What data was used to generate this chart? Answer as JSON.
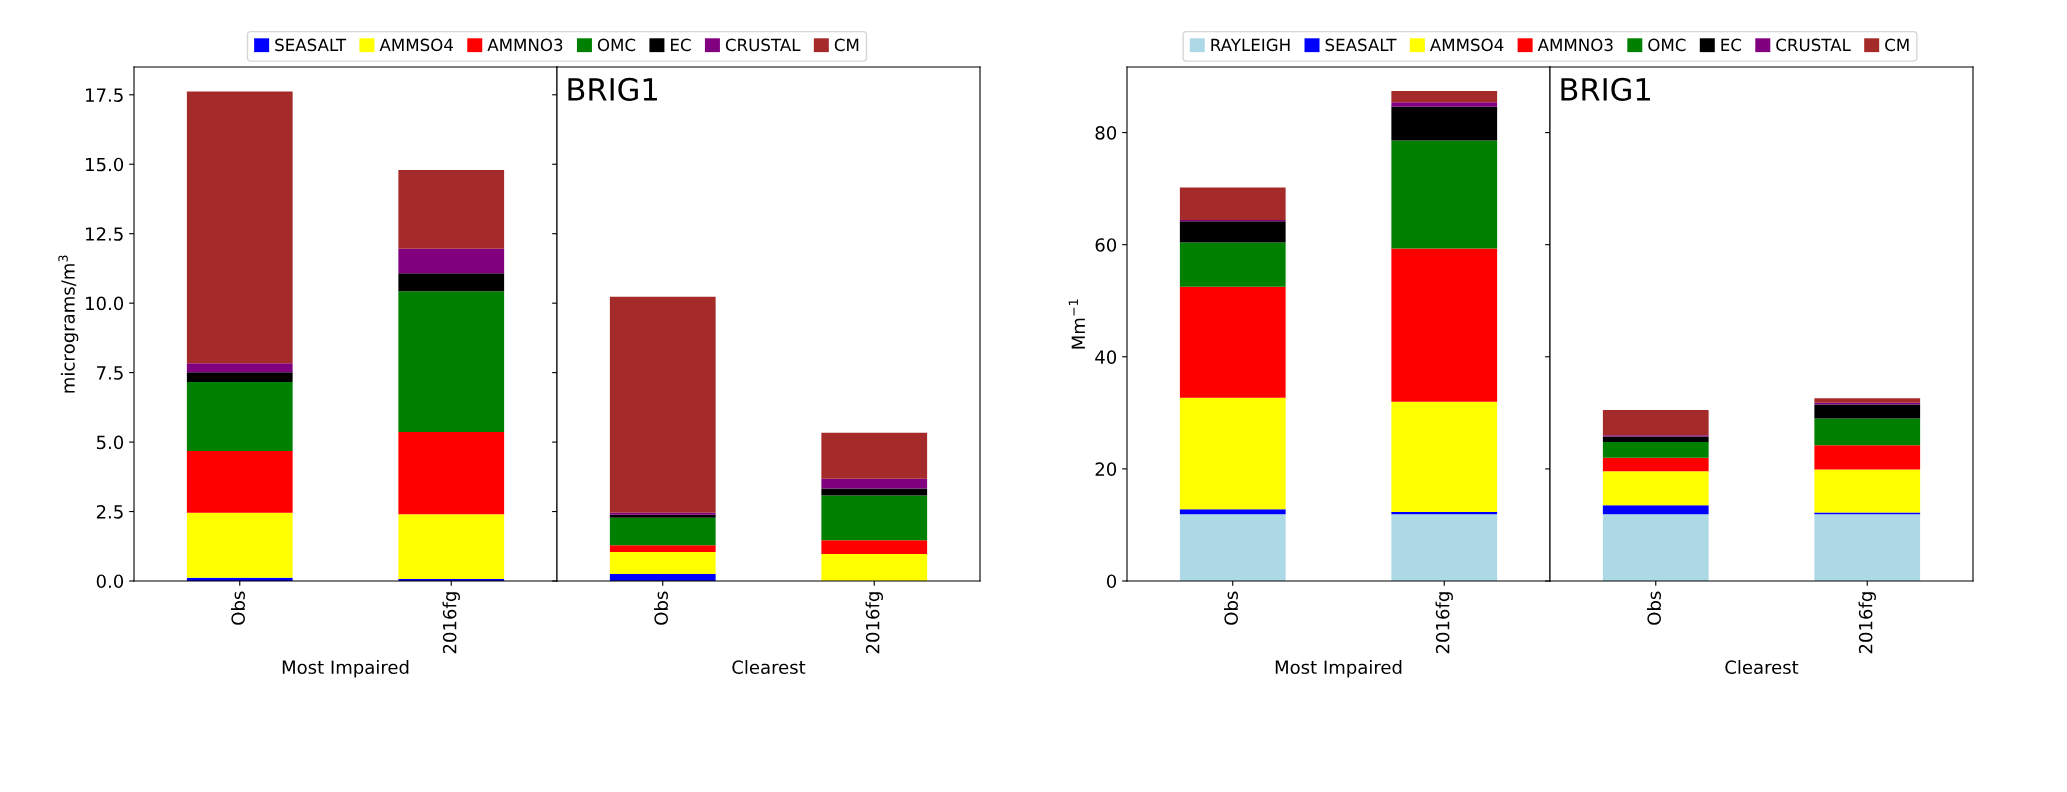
{
  "chart_data": [
    {
      "type": "bar",
      "stacked": true,
      "categories": [
        "Obs",
        "2016fg"
      ],
      "xlabel": "Most Impaired",
      "ylabel": "micrograms/m$^{3}$",
      "ylim": [
        0,
        18.5
      ],
      "yticks": [
        {
          "value": 0,
          "label": "0.0"
        },
        2.5,
        {
          "value": 5,
          "label": "5.0"
        },
        7.5,
        {
          "value": 10,
          "label": "10.0"
        },
        12.5,
        {
          "value": 15,
          "label": "15.0"
        },
        17.5
      ],
      "legend": "top",
      "grid": false,
      "series": [
        {
          "name": "SEASALT",
          "color": "#0000ff",
          "values": [
            0.12,
            0.07
          ]
        },
        {
          "name": "AMMSO4",
          "color": "#ffff00",
          "values": [
            2.34,
            2.33
          ]
        },
        {
          "name": "AMMNO3",
          "color": "#ff0000",
          "values": [
            2.22,
            2.96
          ]
        },
        {
          "name": "OMC",
          "color": "#008000",
          "values": [
            2.48,
            5.07
          ]
        },
        {
          "name": "EC",
          "color": "#000000",
          "values": [
            0.35,
            0.65
          ]
        },
        {
          "name": "CRUSTAL",
          "color": "#800080",
          "values": [
            0.33,
            0.88
          ]
        },
        {
          "name": "CM",
          "color": "#a52a2a",
          "values": [
            9.78,
            2.83
          ]
        }
      ]
    },
    {
      "type": "bar",
      "stacked": true,
      "categories": [
        "Obs",
        "2016fg"
      ],
      "xlabel": "Clearest",
      "ylim": [
        0,
        18.5
      ],
      "yticks": [
        0,
        2.5,
        5,
        7.5,
        10,
        12.5,
        15,
        17.5
      ],
      "tick_labels": "x",
      "grid": false,
      "annotations": [
        "BRIG1"
      ],
      "series": [
        {
          "color": "#0000ff",
          "values": [
            0.25,
            null
          ]
        },
        {
          "color": "#ffff00",
          "values": [
            0.79,
            0.97
          ]
        },
        {
          "color": "#ff0000",
          "values": [
            0.25,
            0.5
          ]
        },
        {
          "color": "#008000",
          "values": [
            0.99,
            1.61
          ]
        },
        {
          "color": "#000000",
          "values": [
            0.1,
            0.25
          ]
        },
        {
          "color": "#800080",
          "values": [
            0.08,
            0.35
          ]
        },
        {
          "color": "#a52a2a",
          "values": [
            7.77,
            1.66
          ]
        }
      ]
    },
    {
      "type": "bar",
      "stacked": true,
      "categories": [
        "Obs",
        "2016fg"
      ],
      "xlabel": "Most Impaired",
      "ylabel": "Mm$^{−1}$",
      "ylim": [
        0,
        91.7
      ],
      "yticks": [
        0,
        20,
        40,
        60,
        80
      ],
      "legend": "top",
      "grid": false,
      "series": [
        {
          "name": "RAYLEIGH",
          "color": "#add8e6",
          "values": [
            11.9,
            11.9
          ]
        },
        {
          "name": "SEASALT",
          "color": "#0000ff",
          "values": [
            0.9,
            0.4
          ]
        },
        {
          "name": "AMMSO4",
          "color": "#ffff00",
          "values": [
            19.9,
            19.7
          ]
        },
        {
          "name": "AMMNO3",
          "color": "#ff0000",
          "values": [
            19.8,
            27.3
          ]
        },
        {
          "name": "OMC",
          "color": "#008000",
          "values": [
            7.9,
            19.3
          ]
        },
        {
          "name": "EC",
          "color": "#000000",
          "values": [
            3.8,
            6.0
          ]
        },
        {
          "name": "CRUSTAL",
          "color": "#800080",
          "values": [
            0.2,
            0.8
          ]
        },
        {
          "name": "CM",
          "color": "#a52a2a",
          "values": [
            5.8,
            2.0
          ]
        }
      ]
    },
    {
      "type": "bar",
      "stacked": true,
      "categories": [
        "Obs",
        "2016fg"
      ],
      "xlabel": "Clearest",
      "ylim": [
        0,
        91.7
      ],
      "yticks": [
        0,
        20,
        40,
        60,
        80
      ],
      "tick_labels": "x",
      "grid": false,
      "annotations": [
        "BRIG1"
      ],
      "series": [
        {
          "color": "#add8e6",
          "values": [
            11.9,
            11.9
          ]
        },
        {
          "color": "#0000ff",
          "values": [
            1.6,
            0.3
          ]
        },
        {
          "color": "#ffff00",
          "values": [
            6.1,
            7.7
          ]
        },
        {
          "color": "#ff0000",
          "values": [
            2.4,
            4.3
          ]
        },
        {
          "color": "#008000",
          "values": [
            2.8,
            4.8
          ]
        },
        {
          "color": "#000000",
          "values": [
            1.0,
            2.5
          ]
        },
        {
          "color": "#800080",
          "values": [
            0.2,
            0.3
          ]
        },
        {
          "color": "#a52a2a",
          "values": [
            4.5,
            0.8
          ]
        }
      ]
    }
  ]
}
